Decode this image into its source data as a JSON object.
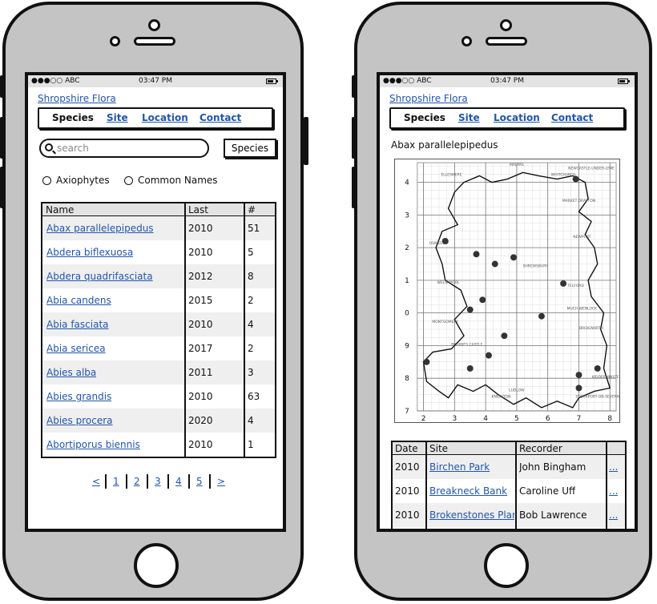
{
  "status": {
    "carrier": "●●●○○ ABC",
    "time": "03:47 PM"
  },
  "app_title": "Shropshire Flora",
  "nav": {
    "active": "Species",
    "links": [
      "Site",
      "Location",
      "Contact"
    ]
  },
  "left_screen": {
    "search_placeholder": "search",
    "species_button": "Species",
    "radio_options": [
      "Axiophytes",
      "Common Names"
    ],
    "table": {
      "columns": [
        "Name",
        "Last",
        "#"
      ],
      "rows": [
        {
          "name": "Abax parallelepipedus",
          "last": "2010",
          "count": "51"
        },
        {
          "name": "Abdera biflexuosa",
          "last": "2010",
          "count": "5"
        },
        {
          "name": "Abdera quadrifasciata",
          "last": "2012",
          "count": "8"
        },
        {
          "name": "Abia candens",
          "last": "2015",
          "count": "2"
        },
        {
          "name": "Abia fasciata",
          "last": "2010",
          "count": "4"
        },
        {
          "name": "Abia sericea",
          "last": "2017",
          "count": "2"
        },
        {
          "name": "Abies alba",
          "last": "2011",
          "count": "3"
        },
        {
          "name": "Abies grandis",
          "last": "2010",
          "count": "63"
        },
        {
          "name": "Abies procera",
          "last": "2020",
          "count": "4"
        },
        {
          "name": "Abortiporus biennis",
          "last": "2010",
          "count": "1"
        }
      ]
    },
    "pagination": [
      "<",
      "1",
      "2",
      "3",
      "4",
      "5",
      ">"
    ]
  },
  "right_screen": {
    "species_name": "Abax parallelepipedus",
    "map": {
      "x_ticks": [
        "2",
        "3",
        "4",
        "5",
        "6",
        "7",
        "8"
      ],
      "y_ticks": [
        "4",
        "3",
        "2",
        "1",
        "0",
        "9",
        "8",
        "7"
      ],
      "place_labels": [
        "MALPAS",
        "ELLESMERE",
        "WHITCHURCH",
        "NEWCASTLE-UNDER-LYME",
        "MARKET DRAYTON",
        "OSWESTRY",
        "NEWPORT",
        "WELSHPOOL",
        "SHREWSBURY",
        "TELFORD",
        "MONTGOMERY",
        "MUCH WENLOCK",
        "BRIDGNORTH",
        "BISHOP'S CASTLE",
        "LUDLOW",
        "KIDDERMINSTER",
        "STOURPORT-ON-SEVERN",
        "KNIGHTON"
      ],
      "records": [
        {
          "x": 6.9,
          "y": 4.1
        },
        {
          "x": 2.7,
          "y": 2.2
        },
        {
          "x": 3.7,
          "y": 1.8
        },
        {
          "x": 4.3,
          "y": 1.5
        },
        {
          "x": 4.9,
          "y": 1.7
        },
        {
          "x": 6.5,
          "y": 0.9
        },
        {
          "x": 3.9,
          "y": 0.4
        },
        {
          "x": 3.5,
          "y": 0.1
        },
        {
          "x": 5.8,
          "y": -0.1
        },
        {
          "x": 4.6,
          "y": -0.7
        },
        {
          "x": 4.1,
          "y": -1.3
        },
        {
          "x": 2.1,
          "y": -1.5
        },
        {
          "x": 3.5,
          "y": -1.7
        },
        {
          "x": 7.0,
          "y": -1.9
        },
        {
          "x": 7.6,
          "y": -1.7
        },
        {
          "x": 7.0,
          "y": -2.3
        }
      ]
    },
    "table": {
      "columns": [
        "Date",
        "Site",
        "Recorder",
        ""
      ],
      "rows": [
        {
          "date": "2010",
          "site": "Birchen Park",
          "recorder": "John Bingham",
          "more": "..."
        },
        {
          "date": "2010",
          "site": "Breakneck Bank",
          "recorder": "Caroline Uff",
          "more": "..."
        },
        {
          "date": "2010",
          "site": "Brokenstones Plar",
          "recorder": "Bob Lawrence",
          "more": "..."
        }
      ]
    }
  }
}
